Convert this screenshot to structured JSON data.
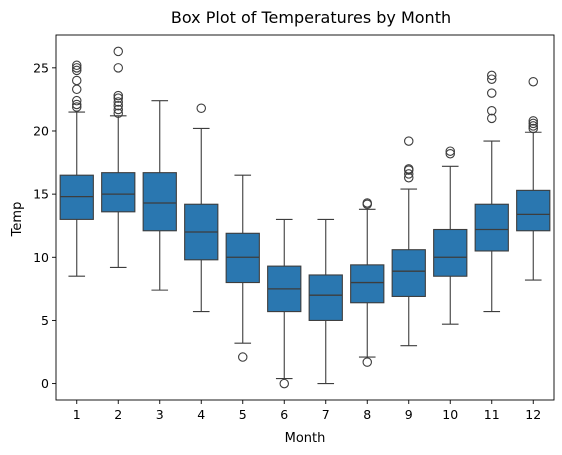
{
  "chart_data": {
    "type": "box",
    "title": "Box Plot of Temperatures by Month",
    "xlabel": "Month",
    "ylabel": "Temp",
    "categories": [
      "1",
      "2",
      "3",
      "4",
      "5",
      "6",
      "7",
      "8",
      "9",
      "10",
      "11",
      "12"
    ],
    "ylim": [
      -1.3,
      27.6
    ],
    "yticks": [
      0,
      5,
      10,
      15,
      20,
      25
    ],
    "grid": false,
    "box_color": "#2a77b0",
    "line_color": "#3d3d3d",
    "boxes": [
      {
        "month": "1",
        "whisker_low": 8.5,
        "q1": 13.0,
        "median": 14.8,
        "q3": 16.5,
        "whisker_high": 21.5,
        "outliers": [
          21.9,
          22.1,
          22.4,
          23.3,
          24.0,
          24.8,
          25.0,
          25.2
        ]
      },
      {
        "month": "2",
        "whisker_low": 9.2,
        "q1": 13.6,
        "median": 15.0,
        "q3": 16.7,
        "whisker_high": 21.2,
        "outliers": [
          21.4,
          21.7,
          22.0,
          22.3,
          22.6,
          22.8,
          25.0,
          26.3
        ]
      },
      {
        "month": "3",
        "whisker_low": 7.4,
        "q1": 12.1,
        "median": 14.3,
        "q3": 16.7,
        "whisker_high": 22.4,
        "outliers": []
      },
      {
        "month": "4",
        "whisker_low": 5.7,
        "q1": 9.8,
        "median": 12.0,
        "q3": 14.2,
        "whisker_high": 20.2,
        "outliers": [
          21.8
        ]
      },
      {
        "month": "5",
        "whisker_low": 3.2,
        "q1": 8.0,
        "median": 10.0,
        "q3": 11.9,
        "whisker_high": 16.5,
        "outliers": [
          2.1
        ]
      },
      {
        "month": "6",
        "whisker_low": 0.4,
        "q1": 5.7,
        "median": 7.5,
        "q3": 9.3,
        "whisker_high": 13.0,
        "outliers": [
          0.0
        ]
      },
      {
        "month": "7",
        "whisker_low": 0.0,
        "q1": 5.0,
        "median": 7.0,
        "q3": 8.6,
        "whisker_high": 13.0,
        "outliers": []
      },
      {
        "month": "8",
        "whisker_low": 2.1,
        "q1": 6.4,
        "median": 8.0,
        "q3": 9.4,
        "whisker_high": 13.8,
        "outliers": [
          14.2,
          14.3,
          1.7
        ]
      },
      {
        "month": "9",
        "whisker_low": 3.0,
        "q1": 6.9,
        "median": 8.9,
        "q3": 10.6,
        "whisker_high": 15.4,
        "outliers": [
          16.3,
          16.6,
          16.9,
          17.0,
          19.2
        ]
      },
      {
        "month": "10",
        "whisker_low": 4.7,
        "q1": 8.5,
        "median": 10.0,
        "q3": 12.2,
        "whisker_high": 17.2,
        "outliers": [
          18.2,
          18.4
        ]
      },
      {
        "month": "11",
        "whisker_low": 5.7,
        "q1": 10.5,
        "median": 12.2,
        "q3": 14.2,
        "whisker_high": 19.2,
        "outliers": [
          21.0,
          21.6,
          23.0,
          24.1,
          24.4
        ]
      },
      {
        "month": "12",
        "whisker_low": 8.2,
        "q1": 12.1,
        "median": 13.4,
        "q3": 15.3,
        "whisker_high": 19.9,
        "outliers": [
          20.2,
          20.4,
          20.6,
          20.8,
          23.9
        ]
      }
    ]
  }
}
